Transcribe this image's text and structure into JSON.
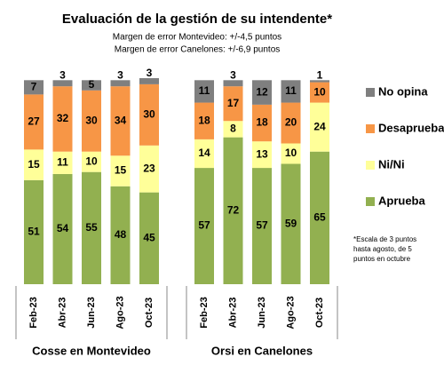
{
  "chart_data": {
    "type": "bar",
    "stacked": true,
    "title": "Evaluación de la gestión de su intendente*",
    "subtitles": [
      "Margen de error Montevideo: +/-4,5 puntos",
      "Margen de error Canelones: +/-6,9 puntos"
    ],
    "note": [
      "*Escala de 3 puntos",
      "hasta agosto, de 5",
      "puntos en octubre"
    ],
    "groups": [
      {
        "label": "Cosse en Montevideo",
        "categories": [
          "Feb-23",
          "Abr-23",
          "Jun-23",
          "Ago-23",
          "Oct-23"
        ]
      },
      {
        "label": "Orsi en Canelones",
        "categories": [
          "Feb-23",
          "Abr-23",
          "Jun-23",
          "Ago-23",
          "Oct-23"
        ]
      }
    ],
    "series": [
      {
        "name": "Aprueba",
        "color": "#92b050",
        "values": [
          [
            51,
            54,
            55,
            48,
            45
          ],
          [
            57,
            72,
            57,
            59,
            65
          ]
        ]
      },
      {
        "name": "Ni/Ni",
        "color": "#ffff99",
        "values": [
          [
            15,
            11,
            10,
            15,
            23
          ],
          [
            14,
            8,
            13,
            10,
            24
          ]
        ]
      },
      {
        "name": "Desaprueba",
        "color": "#f79646",
        "values": [
          [
            27,
            32,
            30,
            34,
            30
          ],
          [
            18,
            17,
            18,
            20,
            10
          ]
        ]
      },
      {
        "name": "No opina",
        "color": "#7f7f7f",
        "values": [
          [
            7,
            3,
            5,
            3,
            3
          ],
          [
            11,
            3,
            12,
            11,
            1
          ]
        ]
      }
    ]
  }
}
